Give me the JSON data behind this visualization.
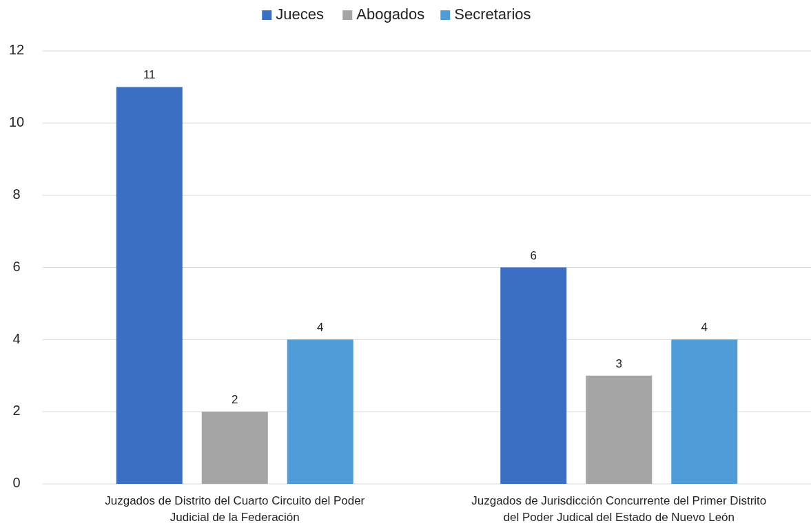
{
  "chart_data": {
    "type": "bar",
    "categories": [
      "Juzgados de Distrito del Cuarto Circuito del Poder Judicial de la Federación",
      "Juzgados de Jurisdicción Concurrente del Primer Distrito del Poder Judical del Estado de Nuevo León"
    ],
    "series": [
      {
        "name": "Jueces",
        "color": "#3b6fc3",
        "values": [
          11,
          6
        ]
      },
      {
        "name": "Abogados",
        "color": "#a5a5a5",
        "values": [
          2,
          3
        ]
      },
      {
        "name": "Secretarios",
        "color": "#4f9cd6",
        "values": [
          4,
          4
        ]
      }
    ],
    "ylim": [
      0,
      12
    ],
    "yticks": [
      0,
      2,
      4,
      6,
      8,
      10,
      12
    ],
    "grid": "y",
    "legend": "top",
    "data_labels": true
  }
}
